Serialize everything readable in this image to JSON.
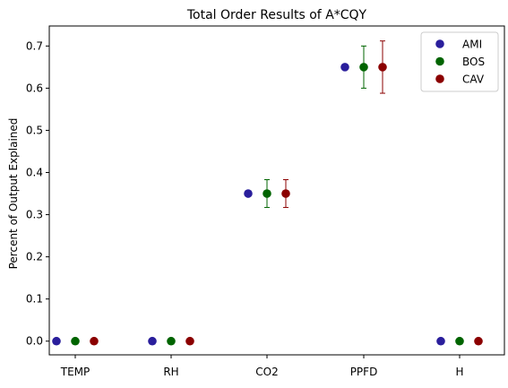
{
  "chart_data": {
    "type": "scatter",
    "title": "Total Order Results of A*CQY",
    "xlabel": "",
    "ylabel": "Percent of Output Explained",
    "categories": [
      "TEMP",
      "RH",
      "CO2",
      "PPFD",
      "H"
    ],
    "ylim": [
      -0.0325,
      0.7475
    ],
    "yticks": [
      0.0,
      0.1,
      0.2,
      0.3,
      0.4,
      0.5,
      0.6,
      0.7
    ],
    "ytick_labels": [
      "0.0",
      "0.1",
      "0.2",
      "0.3",
      "0.4",
      "0.5",
      "0.6",
      "0.7"
    ],
    "grid": false,
    "legend_position": "top-right",
    "series": [
      {
        "name": "AMI",
        "color": "#2a1e9c",
        "values": [
          0.0,
          0.0,
          0.35,
          0.65,
          0.0
        ],
        "errors": [
          0.0,
          0.0,
          0.0,
          0.0,
          0.0
        ]
      },
      {
        "name": "BOS",
        "color": "#006400",
        "values": [
          0.0,
          0.0,
          0.35,
          0.65,
          0.0
        ],
        "errors": [
          0.0,
          0.0,
          0.033,
          0.05,
          0.0
        ]
      },
      {
        "name": "CAV",
        "color": "#8b0000",
        "values": [
          0.0,
          0.0,
          0.35,
          0.65,
          0.0
        ],
        "errors": [
          0.0,
          0.0,
          0.033,
          0.062,
          0.0
        ]
      }
    ]
  }
}
